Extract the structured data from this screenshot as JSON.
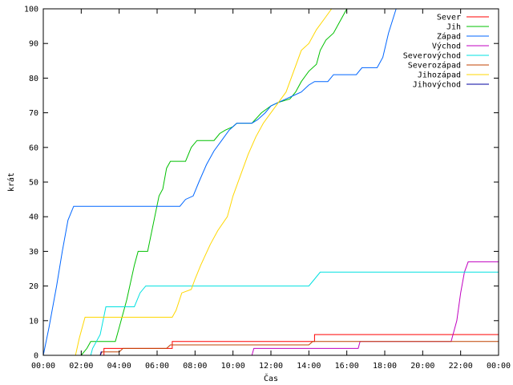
{
  "chart_data": {
    "type": "line",
    "title": "",
    "xlabel": "Čas",
    "ylabel": "krát",
    "xlim": [
      0,
      24
    ],
    "ylim": [
      0,
      100
    ],
    "x_ticks": [
      0,
      2,
      4,
      6,
      8,
      10,
      12,
      14,
      16,
      18,
      20,
      22,
      24
    ],
    "x_tick_labels": [
      "00:00",
      "02:00",
      "04:00",
      "06:00",
      "08:00",
      "10:00",
      "12:00",
      "14:00",
      "16:00",
      "18:00",
      "20:00",
      "22:00",
      "00:00"
    ],
    "y_ticks": [
      0,
      10,
      20,
      30,
      40,
      50,
      60,
      70,
      80,
      90,
      100
    ],
    "y_tick_labels": [
      "0",
      "10",
      "20",
      "30",
      "40",
      "50",
      "60",
      "70",
      "80",
      "90",
      "100"
    ],
    "grid": false,
    "legend_position": "top-right",
    "series": [
      {
        "name": "Sever",
        "color": "#ff0000",
        "points": [
          [
            3.2,
            0
          ],
          [
            3.2,
            2
          ],
          [
            6.8,
            2
          ],
          [
            6.8,
            4
          ],
          [
            14.3,
            4
          ],
          [
            14.3,
            6
          ],
          [
            24,
            6
          ]
        ]
      },
      {
        "name": "Jih",
        "color": "#00c000",
        "points": [
          [
            2.0,
            0
          ],
          [
            2.3,
            2
          ],
          [
            2.5,
            4
          ],
          [
            3.8,
            4
          ],
          [
            4.0,
            8
          ],
          [
            4.4,
            16
          ],
          [
            4.8,
            26
          ],
          [
            5.0,
            30
          ],
          [
            5.5,
            30
          ],
          [
            5.8,
            38
          ],
          [
            6.1,
            46
          ],
          [
            6.3,
            48
          ],
          [
            6.5,
            54
          ],
          [
            6.7,
            56
          ],
          [
            7.5,
            56
          ],
          [
            7.8,
            60
          ],
          [
            8.1,
            62
          ],
          [
            9.0,
            62
          ],
          [
            9.3,
            64
          ],
          [
            9.6,
            65
          ],
          [
            10.0,
            66
          ],
          [
            10.2,
            67
          ],
          [
            11.0,
            67
          ],
          [
            11.5,
            70
          ],
          [
            12.0,
            72
          ],
          [
            12.4,
            73
          ],
          [
            13.0,
            74
          ],
          [
            13.3,
            76
          ],
          [
            13.6,
            79
          ],
          [
            14.0,
            82
          ],
          [
            14.4,
            84
          ],
          [
            14.6,
            88
          ],
          [
            14.9,
            91
          ],
          [
            15.3,
            93
          ],
          [
            15.6,
            96
          ],
          [
            16.0,
            100
          ]
        ]
      },
      {
        "name": "Západ",
        "color": "#0066ff",
        "points": [
          [
            0,
            0
          ],
          [
            0.3,
            8
          ],
          [
            0.7,
            20
          ],
          [
            1.0,
            30
          ],
          [
            1.3,
            39
          ],
          [
            1.6,
            43
          ],
          [
            7.2,
            43
          ],
          [
            7.5,
            45
          ],
          [
            7.9,
            46
          ],
          [
            8.2,
            50
          ],
          [
            8.6,
            55
          ],
          [
            9.0,
            59
          ],
          [
            9.4,
            62
          ],
          [
            9.8,
            65
          ],
          [
            10.2,
            67
          ],
          [
            11.0,
            67
          ],
          [
            11.3,
            68
          ],
          [
            11.7,
            70
          ],
          [
            12.0,
            72
          ],
          [
            12.4,
            73
          ],
          [
            12.8,
            74
          ],
          [
            13.2,
            75
          ],
          [
            13.6,
            76
          ],
          [
            14.0,
            78
          ],
          [
            14.3,
            79
          ],
          [
            15.0,
            79
          ],
          [
            15.3,
            81
          ],
          [
            16.5,
            81
          ],
          [
            16.8,
            83
          ],
          [
            17.6,
            83
          ],
          [
            17.9,
            86
          ],
          [
            18.2,
            93
          ],
          [
            18.6,
            100
          ]
        ]
      },
      {
        "name": "Východ",
        "color": "#c000c0",
        "points": [
          [
            11.0,
            0
          ],
          [
            11.1,
            2
          ],
          [
            16.6,
            2
          ],
          [
            16.7,
            4
          ],
          [
            21.5,
            4
          ],
          [
            21.8,
            10
          ],
          [
            22.0,
            18
          ],
          [
            22.2,
            24
          ],
          [
            22.4,
            27
          ],
          [
            24,
            27
          ]
        ]
      },
      {
        "name": "Severovýchod",
        "color": "#00e0e0",
        "points": [
          [
            2.5,
            0
          ],
          [
            2.6,
            2
          ],
          [
            3.0,
            6
          ],
          [
            3.3,
            14
          ],
          [
            4.8,
            14
          ],
          [
            5.1,
            18
          ],
          [
            5.4,
            20
          ],
          [
            14.0,
            20
          ],
          [
            14.3,
            22
          ],
          [
            14.6,
            24
          ],
          [
            24,
            24
          ]
        ]
      },
      {
        "name": "Severozápad",
        "color": "#c04000",
        "points": [
          [
            3.0,
            0
          ],
          [
            3.1,
            1
          ],
          [
            4.0,
            1
          ],
          [
            4.2,
            2
          ],
          [
            6.5,
            2
          ],
          [
            6.7,
            3
          ],
          [
            14.0,
            3
          ],
          [
            14.2,
            4
          ],
          [
            24,
            4
          ]
        ]
      },
      {
        "name": "Jihozápad",
        "color": "#ffd700",
        "points": [
          [
            1.7,
            0
          ],
          [
            1.9,
            5
          ],
          [
            2.2,
            11
          ],
          [
            6.8,
            11
          ],
          [
            7.0,
            13
          ],
          [
            7.3,
            18
          ],
          [
            7.8,
            19
          ],
          [
            8.0,
            22
          ],
          [
            8.3,
            26
          ],
          [
            8.8,
            32
          ],
          [
            9.2,
            36
          ],
          [
            9.7,
            40
          ],
          [
            10.0,
            46
          ],
          [
            10.4,
            52
          ],
          [
            10.8,
            58
          ],
          [
            11.2,
            63
          ],
          [
            11.6,
            67
          ],
          [
            12.0,
            70
          ],
          [
            12.4,
            73
          ],
          [
            12.8,
            76
          ],
          [
            13.2,
            82
          ],
          [
            13.6,
            88
          ],
          [
            14.0,
            90
          ],
          [
            14.4,
            94
          ],
          [
            14.8,
            97
          ],
          [
            15.2,
            100
          ]
        ]
      },
      {
        "name": "Jihovýchod",
        "color": "#0000a0",
        "points": [
          [
            3.0,
            0
          ],
          [
            3.05,
            1
          ],
          [
            3.1,
            1
          ]
        ]
      }
    ]
  }
}
